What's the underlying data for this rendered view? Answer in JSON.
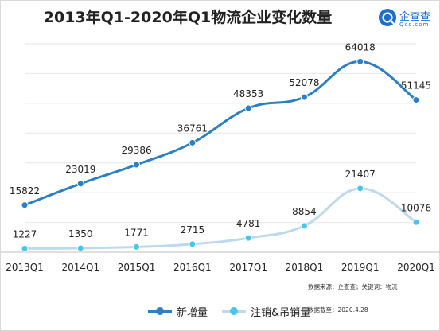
{
  "header": {
    "title": "2013年Q1-2020年Q1物流企业变化数量",
    "logo_cn": "企查查",
    "logo_en": "Qcc.com"
  },
  "footer": {
    "source": "数据来源：企查查；关键词：物流",
    "date": "数据截至：2020.4.28"
  },
  "colors": {
    "series1": "#2b7fc5",
    "series2": "#49c5ec",
    "series2_line": "#bcd9ee",
    "grid": "#e6e6e6"
  },
  "chart_data": {
    "type": "line",
    "title": "2013年Q1-2020年Q1物流企业变化数量",
    "categories": [
      "2013Q1",
      "2014Q1",
      "2015Q1",
      "2016Q1",
      "2017Q1",
      "2018Q1",
      "2019Q1",
      "2020Q1"
    ],
    "series": [
      {
        "name": "新增量",
        "values": [
          15822,
          23019,
          29386,
          36761,
          48353,
          52078,
          64018,
          51145
        ]
      },
      {
        "name": "注销&吊销量",
        "values": [
          1227,
          1350,
          1771,
          2715,
          4781,
          8854,
          21407,
          10076
        ]
      }
    ],
    "ylim": [
      0,
      70000
    ],
    "grid": true,
    "legend": "bottom",
    "xlabel": "",
    "ylabel": ""
  }
}
